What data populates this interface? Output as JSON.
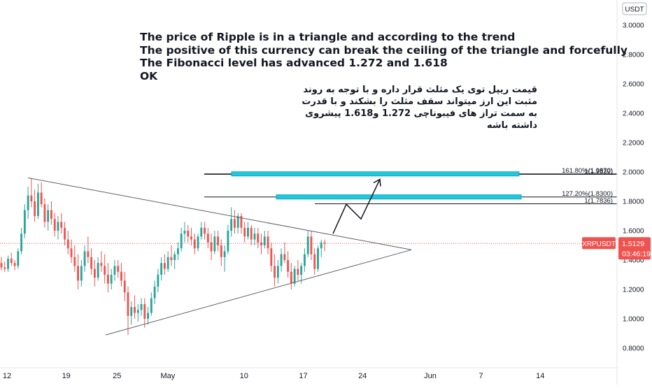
{
  "chart_data": {
    "type": "candlestick",
    "symbol": "XRPUSDT",
    "currency": "USDT",
    "last_price": "1.5129",
    "countdown": "03:46:19",
    "ylim": [
      0.7,
      3.1
    ],
    "y_ticks": [
      "0.8000",
      "1.0000",
      "1.2000",
      "1.4000",
      "1.6000",
      "1.8000",
      "2.0000",
      "2.2000",
      "2.4000",
      "2.6000",
      "2.8000",
      "3.0000"
    ],
    "x_ticks": [
      "12",
      "19",
      "25",
      "May",
      "10",
      "17",
      "24",
      "Jun",
      "7",
      "14"
    ],
    "fib_levels": [
      {
        "label": "161.80%(1.9870)",
        "value": 1.987
      },
      {
        "label": "1(1.9839)",
        "value": 1.9839
      },
      {
        "label": "127.20%(1.8300)",
        "value": 1.83
      },
      {
        "label": "1(1.7836)",
        "value": 1.7836
      }
    ],
    "triangle": {
      "upper": [
        [
          "Apr 14",
          1.96
        ],
        [
          "May 28",
          1.47
        ]
      ],
      "lower": [
        [
          "Apr 23",
          0.89
        ],
        [
          "May 28",
          1.47
        ]
      ]
    },
    "arrow_path": [
      [
        "May 18",
        1.58
      ],
      [
        "May 20",
        1.78
      ],
      [
        "May 22",
        1.68
      ],
      [
        "May 24",
        1.95
      ]
    ],
    "annotation_en": [
      "The price of Ripple is in a triangle and according to the trend",
      "The positive of this currency can break the ceiling of the triangle and forcefully",
      "The Fibonacci level has advanced 1.272 and 1.618",
      "OK"
    ],
    "annotation_fa": "قیمت ریپل توی یک مثلث قرار داره و با توجه به روند مثبت این ارز میتواند سقف مثلث را بشکند و با قدرت به سمت تراز های فیبوناچی 1.272 و1.618 پیشروی داشته باشه",
    "colors": {
      "up": "#26a69a",
      "down": "#ef5350",
      "target_box": "#26c6da",
      "price_tag": "#ef5350",
      "line": "#131722"
    },
    "candles": [
      [
        1.38,
        1.42,
        1.33,
        1.35
      ],
      [
        1.35,
        1.39,
        1.32,
        1.34
      ],
      [
        1.34,
        1.43,
        1.32,
        1.41
      ],
      [
        1.41,
        1.45,
        1.36,
        1.38
      ],
      [
        1.38,
        1.4,
        1.33,
        1.36
      ],
      [
        1.36,
        1.48,
        1.34,
        1.46
      ],
      [
        1.46,
        1.62,
        1.44,
        1.58
      ],
      [
        1.58,
        1.78,
        1.55,
        1.74
      ],
      [
        1.74,
        1.9,
        1.68,
        1.84
      ],
      [
        1.84,
        1.96,
        1.76,
        1.8
      ],
      [
        1.8,
        1.88,
        1.66,
        1.7
      ],
      [
        1.7,
        1.92,
        1.68,
        1.86
      ],
      [
        1.86,
        1.93,
        1.76,
        1.78
      ],
      [
        1.78,
        1.82,
        1.62,
        1.66
      ],
      [
        1.66,
        1.78,
        1.6,
        1.74
      ],
      [
        1.74,
        1.8,
        1.64,
        1.68
      ],
      [
        1.68,
        1.72,
        1.56,
        1.6
      ],
      [
        1.6,
        1.7,
        1.54,
        1.66
      ],
      [
        1.66,
        1.72,
        1.58,
        1.62
      ],
      [
        1.62,
        1.66,
        1.5,
        1.54
      ],
      [
        1.54,
        1.6,
        1.44,
        1.48
      ],
      [
        1.48,
        1.54,
        1.38,
        1.42
      ],
      [
        1.42,
        1.5,
        1.32,
        1.36
      ],
      [
        1.36,
        1.44,
        1.2,
        1.26
      ],
      [
        1.26,
        1.4,
        1.22,
        1.36
      ],
      [
        1.36,
        1.5,
        1.32,
        1.46
      ],
      [
        1.46,
        1.56,
        1.38,
        1.42
      ],
      [
        1.42,
        1.48,
        1.3,
        1.34
      ],
      [
        1.34,
        1.4,
        1.22,
        1.28
      ],
      [
        1.28,
        1.42,
        1.26,
        1.38
      ],
      [
        1.38,
        1.46,
        1.32,
        1.36
      ],
      [
        1.36,
        1.44,
        1.24,
        1.3
      ],
      [
        1.3,
        1.38,
        1.18,
        1.24
      ],
      [
        1.24,
        1.34,
        1.2,
        1.3
      ],
      [
        1.3,
        1.4,
        1.26,
        1.36
      ],
      [
        1.36,
        1.4,
        1.28,
        1.32
      ],
      [
        1.32,
        1.38,
        1.22,
        1.26
      ],
      [
        1.26,
        1.32,
        1.12,
        1.18
      ],
      [
        1.18,
        1.22,
        0.89,
        1.02
      ],
      [
        1.02,
        1.12,
        0.96,
        1.08
      ],
      [
        1.08,
        1.16,
        1.0,
        1.04
      ],
      [
        1.04,
        1.1,
        0.98,
        1.06
      ],
      [
        1.06,
        1.14,
        1.02,
        1.1
      ],
      [
        1.1,
        1.14,
        0.94,
        1.0
      ],
      [
        1.0,
        1.08,
        0.96,
        1.04
      ],
      [
        1.04,
        1.18,
        1.02,
        1.14
      ],
      [
        1.14,
        1.26,
        1.1,
        1.22
      ],
      [
        1.22,
        1.34,
        1.18,
        1.3
      ],
      [
        1.3,
        1.42,
        1.26,
        1.38
      ],
      [
        1.38,
        1.44,
        1.3,
        1.34
      ],
      [
        1.34,
        1.46,
        1.32,
        1.42
      ],
      [
        1.42,
        1.5,
        1.36,
        1.4
      ],
      [
        1.4,
        1.46,
        1.34,
        1.44
      ],
      [
        1.44,
        1.52,
        1.4,
        1.48
      ],
      [
        1.48,
        1.62,
        1.46,
        1.58
      ],
      [
        1.58,
        1.66,
        1.52,
        1.6
      ],
      [
        1.6,
        1.64,
        1.52,
        1.56
      ],
      [
        1.56,
        1.62,
        1.5,
        1.54
      ],
      [
        1.54,
        1.58,
        1.44,
        1.48
      ],
      [
        1.48,
        1.58,
        1.46,
        1.56
      ],
      [
        1.56,
        1.66,
        1.54,
        1.62
      ],
      [
        1.62,
        1.66,
        1.54,
        1.58
      ],
      [
        1.58,
        1.62,
        1.48,
        1.52
      ],
      [
        1.52,
        1.58,
        1.4,
        1.46
      ],
      [
        1.46,
        1.6,
        1.44,
        1.56
      ],
      [
        1.56,
        1.6,
        1.46,
        1.5
      ],
      [
        1.5,
        1.54,
        1.36,
        1.42
      ],
      [
        1.42,
        1.5,
        1.32,
        1.46
      ],
      [
        1.46,
        1.64,
        1.44,
        1.6
      ],
      [
        1.6,
        1.76,
        1.56,
        1.68
      ],
      [
        1.68,
        1.74,
        1.58,
        1.62
      ],
      [
        1.62,
        1.72,
        1.58,
        1.7
      ],
      [
        1.7,
        1.72,
        1.58,
        1.62
      ],
      [
        1.62,
        1.66,
        1.52,
        1.56
      ],
      [
        1.56,
        1.66,
        1.54,
        1.62
      ],
      [
        1.62,
        1.64,
        1.5,
        1.54
      ],
      [
        1.54,
        1.62,
        1.5,
        1.58
      ],
      [
        1.58,
        1.62,
        1.48,
        1.52
      ],
      [
        1.52,
        1.58,
        1.44,
        1.5
      ],
      [
        1.5,
        1.6,
        1.48,
        1.56
      ],
      [
        1.56,
        1.6,
        1.44,
        1.48
      ],
      [
        1.48,
        1.52,
        1.32,
        1.36
      ],
      [
        1.36,
        1.44,
        1.22,
        1.28
      ],
      [
        1.28,
        1.4,
        1.24,
        1.36
      ],
      [
        1.36,
        1.48,
        1.32,
        1.44
      ],
      [
        1.44,
        1.52,
        1.38,
        1.4
      ],
      [
        1.4,
        1.46,
        1.28,
        1.32
      ],
      [
        1.32,
        1.38,
        1.2,
        1.24
      ],
      [
        1.24,
        1.36,
        1.22,
        1.34
      ],
      [
        1.34,
        1.4,
        1.26,
        1.3
      ],
      [
        1.3,
        1.38,
        1.24,
        1.36
      ],
      [
        1.36,
        1.48,
        1.32,
        1.44
      ],
      [
        1.44,
        1.6,
        1.42,
        1.56
      ],
      [
        1.56,
        1.6,
        1.4,
        1.44
      ],
      [
        1.44,
        1.48,
        1.3,
        1.34
      ],
      [
        1.34,
        1.5,
        1.32,
        1.48
      ],
      [
        1.48,
        1.54,
        1.42,
        1.52
      ],
      [
        1.52,
        1.54,
        1.46,
        1.5129
      ]
    ]
  }
}
